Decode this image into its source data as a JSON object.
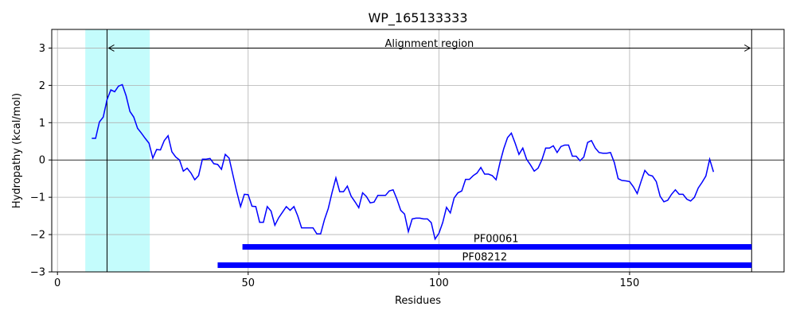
{
  "chart_data": {
    "type": "line",
    "title": "WP_165133333",
    "xlabel": "Residues",
    "ylabel": "Hydropathy (kcal/mol)",
    "xlim": [
      -1.5,
      190.5
    ],
    "ylim": [
      -3,
      3.5
    ],
    "xticks": [
      0,
      50,
      100,
      150
    ],
    "yticks": [
      -3,
      -2,
      -1,
      0,
      1,
      2,
      3
    ],
    "grid": true,
    "series": [
      {
        "color": "#0000ff",
        "x": [
          9,
          10,
          11,
          12,
          13,
          14,
          15,
          16,
          17,
          18,
          19,
          20,
          21,
          22,
          23,
          24,
          25,
          26,
          27,
          28,
          29,
          30,
          31,
          32,
          33,
          34,
          35,
          36,
          37,
          38,
          39,
          40,
          41,
          42,
          43,
          44,
          45,
          46,
          47,
          48,
          49,
          50,
          51,
          52,
          53,
          54,
          55,
          56,
          57,
          58,
          59,
          60,
          61,
          62,
          63,
          64,
          65,
          66,
          67,
          68,
          69,
          70,
          71,
          72,
          73,
          74,
          75,
          76,
          77,
          78,
          79,
          80,
          81,
          82,
          83,
          84,
          85,
          86,
          87,
          88,
          89,
          90,
          91,
          92,
          93,
          94,
          95,
          96,
          97,
          98,
          99,
          100,
          101,
          102,
          103,
          104,
          105,
          106,
          107,
          108,
          109,
          110,
          111,
          112,
          113,
          114,
          115,
          116,
          117,
          118,
          119,
          120,
          121,
          122,
          123,
          124,
          125,
          126,
          127,
          128,
          129,
          130,
          131,
          132,
          133,
          134,
          135,
          136,
          137,
          138,
          139,
          140,
          141,
          142,
          143,
          144,
          145,
          146,
          147,
          148,
          149,
          150,
          151,
          152,
          153,
          154,
          155,
          156,
          157,
          158,
          159,
          160,
          161,
          162,
          163,
          164,
          165,
          166,
          167,
          168,
          169,
          170,
          171,
          172
        ],
        "y": [
          0.58,
          0.58,
          1.02,
          1.15,
          1.62,
          1.88,
          1.83,
          1.98,
          2.02,
          1.72,
          1.3,
          1.15,
          0.85,
          0.72,
          0.58,
          0.45,
          0.05,
          0.28,
          0.27,
          0.52,
          0.65,
          0.22,
          0.08,
          0.0,
          -0.3,
          -0.22,
          -0.35,
          -0.53,
          -0.42,
          0.02,
          0.02,
          0.04,
          -0.1,
          -0.12,
          -0.25,
          0.15,
          0.05,
          -0.4,
          -0.85,
          -1.25,
          -0.92,
          -0.93,
          -1.24,
          -1.25,
          -1.67,
          -1.67,
          -1.25,
          -1.37,
          -1.75,
          -1.55,
          -1.4,
          -1.25,
          -1.35,
          -1.25,
          -1.5,
          -1.82,
          -1.82,
          -1.82,
          -1.82,
          -1.98,
          -1.98,
          -1.6,
          -1.3,
          -0.87,
          -0.48,
          -0.85,
          -0.85,
          -0.7,
          -0.97,
          -1.12,
          -1.28,
          -0.88,
          -0.98,
          -1.15,
          -1.13,
          -0.95,
          -0.95,
          -0.95,
          -0.83,
          -0.8,
          -1.05,
          -1.35,
          -1.45,
          -1.92,
          -1.58,
          -1.56,
          -1.56,
          -1.58,
          -1.58,
          -1.68,
          -2.12,
          -1.97,
          -1.68,
          -1.27,
          -1.42,
          -1.02,
          -0.88,
          -0.83,
          -0.52,
          -0.52,
          -0.42,
          -0.35,
          -0.2,
          -0.38,
          -0.38,
          -0.42,
          -0.53,
          -0.08,
          0.3,
          0.6,
          0.72,
          0.45,
          0.15,
          0.32,
          0.02,
          -0.13,
          -0.3,
          -0.22,
          0.0,
          0.32,
          0.32,
          0.38,
          0.2,
          0.36,
          0.4,
          0.4,
          0.1,
          0.1,
          -0.02,
          0.08,
          0.47,
          0.52,
          0.32,
          0.2,
          0.18,
          0.18,
          0.2,
          -0.07,
          -0.5,
          -0.55,
          -0.56,
          -0.58,
          -0.72,
          -0.9,
          -0.58,
          -0.28,
          -0.4,
          -0.43,
          -0.58,
          -0.97,
          -1.12,
          -1.08,
          -0.92,
          -0.8,
          -0.92,
          -0.92,
          -1.05,
          -1.1,
          -1.0,
          -0.75,
          -0.6,
          -0.43,
          0.02,
          -0.32
        ]
      }
    ],
    "reference_lines": {
      "hline_y": 0,
      "vline_x": [
        13,
        182
      ]
    },
    "shaded_region": {
      "x_range": [
        7.3,
        24.2
      ],
      "color": "#c4fcfc"
    },
    "annotations": [
      {
        "text": "Alignment region",
        "x": 97.5,
        "y": 3.12,
        "arrow_from": 13,
        "arrow_to": 182,
        "arrow_y": 3.0
      }
    ],
    "domains": [
      {
        "name": "PF00061",
        "start": 48.5,
        "end": 182,
        "y": -2.33,
        "label_x": 115,
        "label_y": -2.12,
        "color": "#0000ff"
      },
      {
        "name": "PF08212",
        "start": 42,
        "end": 182,
        "y": -2.82,
        "label_x": 112,
        "label_y": -2.61,
        "color": "#0000ff"
      }
    ]
  }
}
